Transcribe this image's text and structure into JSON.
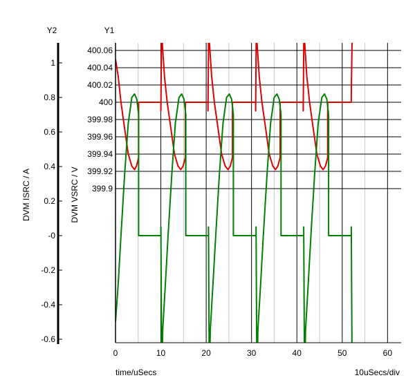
{
  "chart_data": {
    "type": "line",
    "x_axis": {
      "title": "time/uSecs",
      "scale_label": "10uSecs/div",
      "range": [
        0,
        63
      ],
      "ticks": [
        0,
        10,
        20,
        30,
        40,
        50,
        60
      ],
      "minor_ticks": [
        5,
        15,
        25,
        35,
        45,
        55
      ]
    },
    "y1_axis": {
      "name": "Y1",
      "title": "DVM VSRC / V",
      "range": [
        399.89,
        400.061
      ],
      "ticks": [
        {
          "value": 400.06,
          "label": "400.06"
        },
        {
          "value": 400.04,
          "label": "400.04"
        },
        {
          "value": 400.02,
          "label": "400.02"
        },
        {
          "value": 400.0,
          "label": "400"
        },
        {
          "value": 399.98,
          "label": "399.98"
        },
        {
          "value": 399.96,
          "label": "399.96"
        },
        {
          "value": 399.94,
          "label": "399.94"
        },
        {
          "value": 399.92,
          "label": "399.92"
        },
        {
          "value": 399.9,
          "label": "399.9"
        }
      ]
    },
    "y2_axis": {
      "name": "Y2",
      "title": "DVM ISRC / A",
      "range": [
        -0.61,
        1.1
      ],
      "ticks": [
        {
          "value": 1,
          "label": "1"
        },
        {
          "value": 0.8,
          "label": "0.8"
        },
        {
          "value": 0.6,
          "label": "0.6"
        },
        {
          "value": 0.4,
          "label": "0.4"
        },
        {
          "value": 0.2,
          "label": "0.2"
        },
        {
          "value": 0,
          "label": "-0"
        },
        {
          "value": -0.2,
          "label": "-0.2"
        },
        {
          "value": -0.4,
          "label": "-0.4"
        },
        {
          "value": -0.6,
          "label": "-0.6"
        }
      ]
    },
    "grid": true,
    "series": [
      {
        "color": "#e00000",
        "axis": "y1",
        "segments": [
          [
            [
              0,
              400.05
            ],
            [
              0.6,
              400.03
            ],
            [
              1.2,
              400.0
            ],
            [
              2,
              399.97
            ],
            [
              2.8,
              399.94
            ],
            [
              3.6,
              399.926
            ],
            [
              4.2,
              399.922
            ],
            [
              4.6,
              399.926
            ],
            [
              5.1,
              399.936
            ],
            [
              5.1,
              400.0
            ],
            [
              10,
              400.0
            ],
            [
              10,
              399.99
            ],
            [
              10.2,
              400.12
            ],
            [
              10.3,
              400.07
            ],
            [
              10.8,
              400.03
            ],
            [
              11.4,
              400.0
            ],
            [
              12.2,
              399.97
            ],
            [
              13,
              399.94
            ],
            [
              13.8,
              399.926
            ],
            [
              14.4,
              399.922
            ],
            [
              14.9,
              399.926
            ],
            [
              15.4,
              399.936
            ],
            [
              15.4,
              400.0
            ],
            [
              20.4,
              400.0
            ],
            [
              20.4,
              399.99
            ],
            [
              20.6,
              400.12
            ],
            [
              20.7,
              400.07
            ],
            [
              21.2,
              400.03
            ],
            [
              21.8,
              400.0
            ],
            [
              22.6,
              399.97
            ],
            [
              23.4,
              399.94
            ],
            [
              24.2,
              399.926
            ],
            [
              24.8,
              399.922
            ],
            [
              25.3,
              399.926
            ],
            [
              25.8,
              399.936
            ],
            [
              25.8,
              400.0
            ],
            [
              30.9,
              400.0
            ],
            [
              30.9,
              399.99
            ],
            [
              31.1,
              400.12
            ],
            [
              31.2,
              400.07
            ],
            [
              31.7,
              400.03
            ],
            [
              32.3,
              400.0
            ],
            [
              33.1,
              399.97
            ],
            [
              33.9,
              399.94
            ],
            [
              34.7,
              399.926
            ],
            [
              35.3,
              399.922
            ],
            [
              35.8,
              399.926
            ],
            [
              36.3,
              399.936
            ],
            [
              36.3,
              400.0
            ],
            [
              41.4,
              400.0
            ],
            [
              41.4,
              399.99
            ],
            [
              41.6,
              400.12
            ],
            [
              41.7,
              400.07
            ],
            [
              42.2,
              400.03
            ],
            [
              42.8,
              400.0
            ],
            [
              43.6,
              399.97
            ],
            [
              44.4,
              399.94
            ],
            [
              45.2,
              399.926
            ],
            [
              45.8,
              399.922
            ],
            [
              46.3,
              399.926
            ],
            [
              46.8,
              399.936
            ],
            [
              46.8,
              400.0
            ],
            [
              52,
              400.0
            ],
            [
              52,
              400.01
            ],
            [
              52.3,
              400.12
            ]
          ]
        ]
      },
      {
        "color": "#008000",
        "axis": "y2",
        "segments": [
          [
            [
              0,
              -0.5
            ],
            [
              0.6,
              -0.28
            ],
            [
              1.2,
              0.0
            ],
            [
              2,
              0.35
            ],
            [
              2.8,
              0.65
            ],
            [
              3.6,
              0.8
            ],
            [
              4.2,
              0.82
            ],
            [
              4.7,
              0.79
            ],
            [
              5.1,
              0.7
            ],
            [
              5.1,
              0.0
            ],
            [
              10,
              0.0
            ],
            [
              10,
              0.05
            ],
            [
              10.2,
              -0.9
            ],
            [
              10.4,
              -0.55
            ],
            [
              11,
              -0.28
            ],
            [
              11.6,
              0.0
            ],
            [
              12.4,
              0.35
            ],
            [
              13.2,
              0.65
            ],
            [
              14,
              0.8
            ],
            [
              14.6,
              0.82
            ],
            [
              15.1,
              0.79
            ],
            [
              15.5,
              0.7
            ],
            [
              15.5,
              0.0
            ],
            [
              20.5,
              0.0
            ],
            [
              20.5,
              0.05
            ],
            [
              20.7,
              -0.9
            ],
            [
              20.9,
              -0.55
            ],
            [
              21.5,
              -0.28
            ],
            [
              22.1,
              0.0
            ],
            [
              22.9,
              0.35
            ],
            [
              23.7,
              0.65
            ],
            [
              24.5,
              0.8
            ],
            [
              25.1,
              0.82
            ],
            [
              25.6,
              0.79
            ],
            [
              26,
              0.7
            ],
            [
              26,
              0.0
            ],
            [
              31,
              0.0
            ],
            [
              31,
              0.05
            ],
            [
              31.2,
              -0.9
            ],
            [
              31.4,
              -0.55
            ],
            [
              32,
              -0.28
            ],
            [
              32.6,
              0.0
            ],
            [
              33.4,
              0.35
            ],
            [
              34.2,
              0.65
            ],
            [
              35,
              0.8
            ],
            [
              35.6,
              0.82
            ],
            [
              36.1,
              0.79
            ],
            [
              36.5,
              0.7
            ],
            [
              36.5,
              0.0
            ],
            [
              41.5,
              0.0
            ],
            [
              41.5,
              0.05
            ],
            [
              41.7,
              -0.9
            ],
            [
              41.9,
              -0.55
            ],
            [
              42.5,
              -0.28
            ],
            [
              43.1,
              0.0
            ],
            [
              43.9,
              0.35
            ],
            [
              44.7,
              0.65
            ],
            [
              45.5,
              0.8
            ],
            [
              46.1,
              0.82
            ],
            [
              46.6,
              0.79
            ],
            [
              47,
              0.7
            ],
            [
              47,
              0.0
            ],
            [
              52,
              0.0
            ],
            [
              52,
              0.05
            ],
            [
              52.2,
              -0.9
            ]
          ]
        ]
      }
    ]
  }
}
